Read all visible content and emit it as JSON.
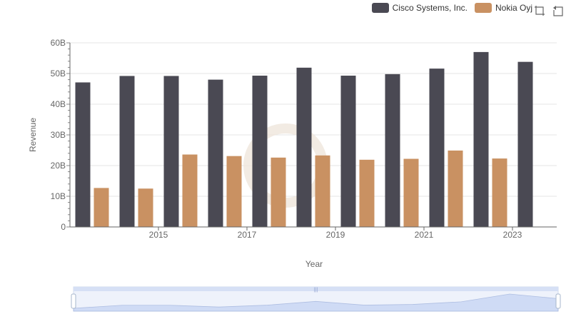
{
  "chart_data": {
    "type": "bar",
    "categories": [
      "2014",
      "2015",
      "2016",
      "2017",
      "2018",
      "2019",
      "2020",
      "2021",
      "2022",
      "2023",
      "2024"
    ],
    "series": [
      {
        "name": "Cisco Systems, Inc.",
        "color": "#4a4953",
        "values": [
          47.1,
          49.2,
          49.2,
          48.0,
          49.3,
          51.9,
          49.3,
          49.8,
          51.6,
          57.0,
          53.8
        ]
      },
      {
        "name": "Nokia Oyj",
        "color": "#c99162",
        "values": [
          12.7,
          12.5,
          23.6,
          23.1,
          22.6,
          23.3,
          21.9,
          22.2,
          24.9,
          22.3,
          null
        ]
      }
    ],
    "xlabel": "Year",
    "ylabel": "Revenue",
    "ylim": [
      0,
      60
    ],
    "yticks": [
      "0",
      "10B",
      "20B",
      "30B",
      "40B",
      "50B",
      "60B"
    ],
    "xtick_labels": [
      "2015",
      "2017",
      "2019",
      "2021",
      "2023"
    ],
    "grid": true,
    "legend": "top-right"
  },
  "toolbox": {
    "zoom_icon": "zoom-icon",
    "restore_icon": "restore-icon"
  },
  "slider": {
    "handle_icon": "slider-handle-icon",
    "start": 0,
    "end": 1
  }
}
